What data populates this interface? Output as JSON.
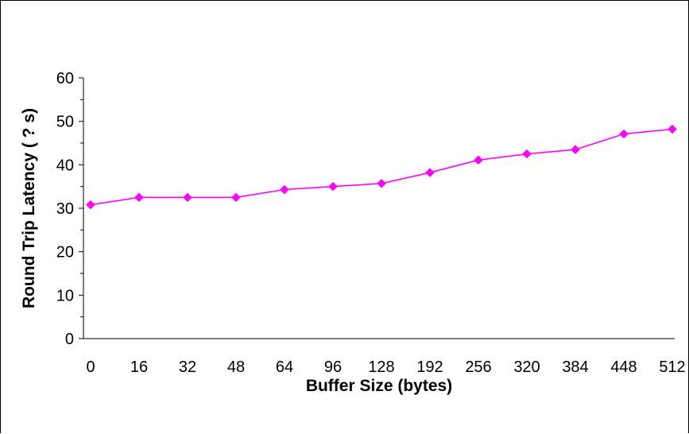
{
  "chart_data": {
    "type": "line",
    "xlabel": "Buffer Size (bytes)",
    "ylabel": "Round Trip Latency ( ? s)",
    "categories": [
      "0",
      "16",
      "32",
      "48",
      "64",
      "96",
      "128",
      "192",
      "256",
      "320",
      "384",
      "448",
      "512"
    ],
    "series": [
      {
        "values": [
          30.8,
          32.5,
          32.5,
          32.5,
          34.3,
          35.0,
          35.7,
          38.2,
          41.1,
          42.5,
          43.5,
          47.1,
          48.2
        ],
        "color": "#ff00ff",
        "marker": "diamond"
      }
    ],
    "ylim": [
      0,
      60
    ],
    "yticks": [
      "0",
      "10",
      "20",
      "30",
      "40",
      "50",
      "60"
    ],
    "grid": false,
    "legend": "none"
  }
}
